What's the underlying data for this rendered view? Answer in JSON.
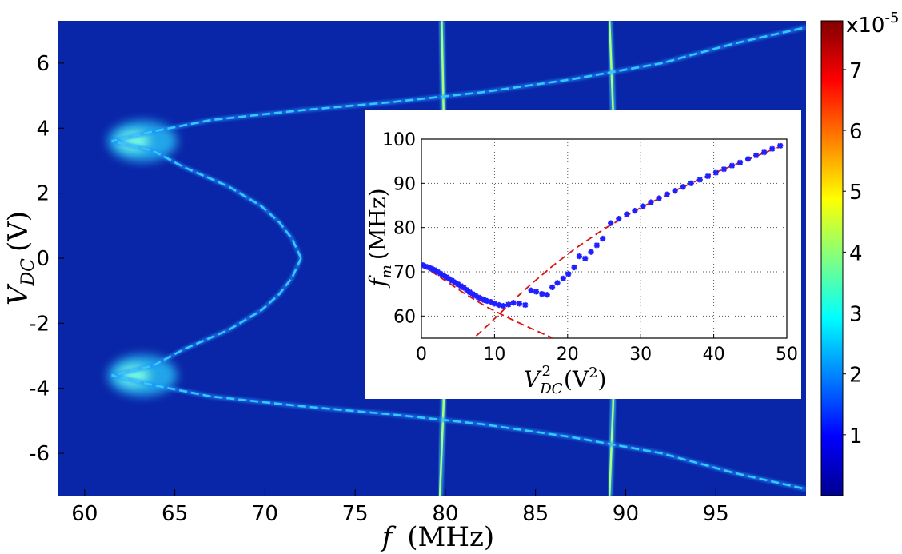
{
  "chart_data": [
    {
      "type": "heatmap",
      "xlabel": "f (MHz)",
      "xlabel_var": "f",
      "xlabel_unit": "(MHz)",
      "ylabel": "V_DC (V)",
      "ylabel_var": "V",
      "ylabel_sub": "DC",
      "ylabel_unit": "(V)",
      "xlim": [
        58.5,
        100
      ],
      "ylim": [
        -7.3,
        7.3
      ],
      "x_ticks": [
        "60",
        "65",
        "70",
        "75",
        "80",
        "85",
        "90",
        "95"
      ],
      "x_tick_values": [
        60,
        65,
        70,
        75,
        80,
        85,
        90,
        95
      ],
      "y_ticks": [
        "6",
        "4",
        "2",
        "0",
        "-2",
        "-4",
        "-6"
      ],
      "y_tick_values": [
        6,
        4,
        2,
        0,
        -2,
        -4,
        -6
      ],
      "colorbar": {
        "colormap": "jet",
        "range": [
          0,
          7.8
        ],
        "tick_labels": [
          "1",
          "2",
          "3",
          "4",
          "5",
          "6",
          "7"
        ],
        "tick_values": [
          1,
          2,
          3,
          4,
          5,
          6,
          7
        ],
        "exponent_base": "x10",
        "exponent_power": "-5"
      },
      "background_color": "#0a26a8",
      "features": {
        "vertical_modes": [
          {
            "x": [
              79.8,
              79.9,
              80.0,
              80.0,
              79.9,
              79.7
            ],
            "y": [
              7.3,
              4.5,
              1.5,
              -1.5,
              -4.5,
              -7.3
            ]
          },
          {
            "x": [
              89.1,
              89.3,
              89.4,
              89.4,
              89.3,
              89.1
            ],
            "y": [
              7.3,
              4.5,
              1.5,
              -1.5,
              -4.5,
              -7.3
            ]
          }
        ],
        "parabola_mode": {
          "points": [
            [
              72.0,
              0
            ],
            [
              71.5,
              0.6
            ],
            [
              70.8,
              1.1
            ],
            [
              69.8,
              1.6
            ],
            [
              68.0,
              2.2
            ],
            [
              65.5,
              2.8
            ],
            [
              63.8,
              3.3
            ],
            [
              61.5,
              3.6
            ],
            [
              63.8,
              3.9
            ],
            [
              67.0,
              4.25
            ],
            [
              72.0,
              4.55
            ],
            [
              77.0,
              4.8
            ],
            [
              82.0,
              5.1
            ],
            [
              87.0,
              5.5
            ],
            [
              92.0,
              6.0
            ],
            [
              96.0,
              6.6
            ],
            [
              100.0,
              7.1
            ]
          ],
          "mirror_y": true
        },
        "bright_patches": [
          {
            "x": 63.2,
            "y": 3.6,
            "rx": 1.6,
            "ry": 0.45
          },
          {
            "x": 63.2,
            "y": -3.6,
            "rx": 1.6,
            "ry": 0.45
          }
        ]
      }
    },
    {
      "type": "scatter",
      "xlabel": "V_DC^2 (V^2)",
      "xlabel_var": "V",
      "xlabel_sub": "DC",
      "xlabel_sup": "2",
      "xlabel_unit_base": "(V",
      "xlabel_unit_sup": "2",
      "xlabel_unit_close": ")",
      "ylabel": "f_m (MHz)",
      "ylabel_var": "f",
      "ylabel_sub": "m",
      "ylabel_unit": "(MHz)",
      "xlim": [
        0,
        50
      ],
      "ylim": [
        55,
        100
      ],
      "x_ticks": [
        "0",
        "10",
        "20",
        "30",
        "40",
        "50"
      ],
      "x_tick_values": [
        0,
        10,
        20,
        30,
        40,
        50
      ],
      "y_ticks": [
        "60",
        "70",
        "80",
        "90",
        "100"
      ],
      "y_tick_values": [
        60,
        70,
        80,
        90,
        100
      ],
      "grid": true,
      "series": [
        {
          "marker": "star",
          "color": "#1f1fff",
          "x": [
            0.2,
            0.6,
            1.0,
            1.4,
            1.8,
            2.2,
            2.6,
            3.0,
            3.4,
            3.8,
            4.2,
            4.6,
            5.0,
            5.4,
            5.8,
            6.2,
            6.6,
            7.0,
            7.4,
            7.8,
            8.2,
            8.6,
            9.0,
            9.5,
            10.0,
            10.6,
            11.2,
            11.9,
            12.6,
            13.4,
            14.2,
            15.0,
            15.7,
            16.5,
            17.2,
            17.9,
            18.6,
            19.4,
            20.1,
            20.9,
            21.6,
            22.4,
            23.2,
            24.0,
            24.8,
            25.9,
            27.0,
            28.1,
            29.2,
            30.3,
            31.4,
            32.5,
            33.6,
            34.7,
            35.8,
            36.9,
            38.1,
            39.2,
            40.3,
            41.4,
            42.5,
            43.6,
            44.7,
            45.8,
            46.9,
            48.0,
            49.1
          ],
          "y": [
            71.5,
            71.2,
            71.0,
            70.7,
            70.4,
            70.0,
            69.6,
            69.2,
            68.8,
            68.4,
            68.0,
            67.6,
            67.2,
            66.8,
            66.4,
            65.9,
            65.4,
            65.0,
            64.6,
            64.2,
            63.9,
            63.6,
            63.4,
            63.2,
            62.8,
            62.5,
            62.3,
            62.6,
            63.0,
            62.8,
            62.5,
            65.8,
            65.5,
            65.0,
            64.8,
            66.5,
            67.5,
            68.5,
            69.5,
            71.0,
            73.5,
            73.0,
            74.5,
            76.0,
            77.5,
            81.0,
            82.0,
            83.0,
            83.8,
            84.8,
            85.7,
            86.6,
            87.5,
            88.3,
            89.2,
            90.0,
            90.8,
            91.6,
            92.4,
            93.2,
            94.0,
            94.7,
            95.5,
            96.3,
            97.0,
            97.8,
            98.5
          ]
        }
      ],
      "fit_lines": [
        {
          "style": "dashed",
          "color": "#dd1111",
          "x": [
            0,
            3,
            6,
            9,
            12,
            15,
            18
          ],
          "y": [
            71.6,
            68.3,
            65.0,
            62.0,
            59.5,
            57.2,
            55.0
          ]
        },
        {
          "style": "dashed",
          "color": "#dd1111",
          "x": [
            7.5,
            9,
            11,
            13,
            15,
            18,
            21,
            25,
            30,
            35,
            40,
            45,
            49.2
          ],
          "y": [
            55.5,
            57.8,
            61.0,
            64.2,
            67.2,
            71.4,
            75.2,
            79.7,
            84.5,
            88.6,
            92.3,
            95.6,
            98.4
          ]
        }
      ]
    }
  ]
}
